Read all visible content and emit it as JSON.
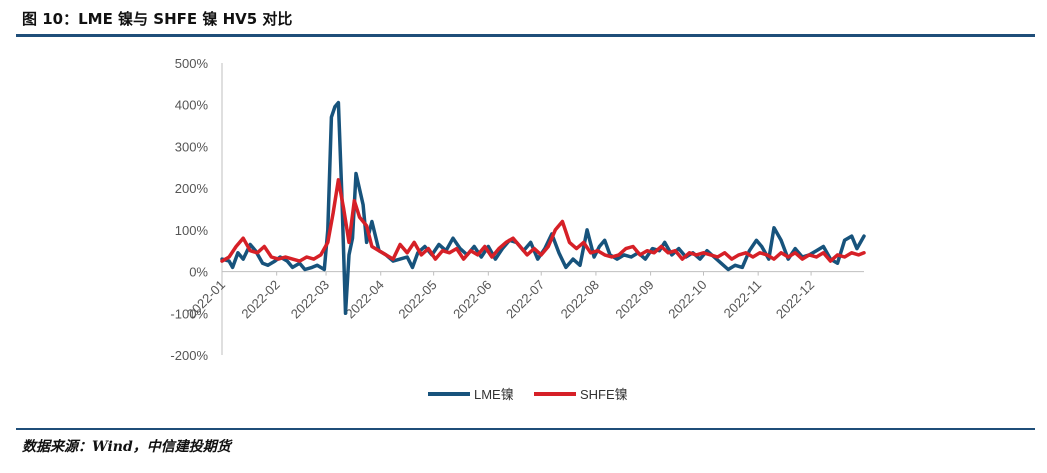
{
  "figure": {
    "title": "图 10：LME 镍与 SHFE 镍 HV5 对比",
    "source": "数据来源：Wind，中信建投期货"
  },
  "colors": {
    "lme": "#17537c",
    "shfe": "#d62027",
    "rule": "#1f4e79"
  },
  "chart_data": {
    "type": "line",
    "title": "",
    "xlabel": "",
    "ylabel": "",
    "ylim": [
      -200,
      500
    ],
    "yticks": [
      500,
      400,
      300,
      200,
      100,
      0,
      -100,
      -200
    ],
    "ytick_labels": [
      "500%",
      "400%",
      "300%",
      "200%",
      "100%",
      "0%",
      "-100%",
      "-200%"
    ],
    "xticks": [
      "2022-01",
      "2022-02",
      "2022-03",
      "2022-04",
      "2022-05",
      "2022-06",
      "2022-07",
      "2022-08",
      "2022-09",
      "2022-10",
      "2022-11",
      "2022-12"
    ],
    "grid": false,
    "legend_position": "bottom-center",
    "series": [
      {
        "name": "LME镍",
        "points": [
          [
            "2022-01-01",
            30
          ],
          [
            "2022-01-05",
            25
          ],
          [
            "2022-01-07",
            10
          ],
          [
            "2022-01-10",
            45
          ],
          [
            "2022-01-13",
            30
          ],
          [
            "2022-01-17",
            65
          ],
          [
            "2022-01-20",
            50
          ],
          [
            "2022-01-24",
            20
          ],
          [
            "2022-01-27",
            15
          ],
          [
            "2022-01-31",
            25
          ],
          [
            "2022-02-03",
            35
          ],
          [
            "2022-02-07",
            25
          ],
          [
            "2022-02-10",
            10
          ],
          [
            "2022-02-14",
            20
          ],
          [
            "2022-02-17",
            5
          ],
          [
            "2022-02-21",
            10
          ],
          [
            "2022-02-24",
            15
          ],
          [
            "2022-02-28",
            5
          ],
          [
            "2022-03-02",
            100
          ],
          [
            "2022-03-04",
            370
          ],
          [
            "2022-03-06",
            395
          ],
          [
            "2022-03-08",
            405
          ],
          [
            "2022-03-10",
            180
          ],
          [
            "2022-03-12",
            -100
          ],
          [
            "2022-03-14",
            40
          ],
          [
            "2022-03-16",
            80
          ],
          [
            "2022-03-18",
            235
          ],
          [
            "2022-03-22",
            160
          ],
          [
            "2022-03-24",
            70
          ],
          [
            "2022-03-27",
            120
          ],
          [
            "2022-03-31",
            50
          ],
          [
            "2022-04-04",
            40
          ],
          [
            "2022-04-08",
            25
          ],
          [
            "2022-04-12",
            30
          ],
          [
            "2022-04-16",
            35
          ],
          [
            "2022-04-19",
            10
          ],
          [
            "2022-04-22",
            45
          ],
          [
            "2022-04-26",
            60
          ],
          [
            "2022-04-30",
            40
          ],
          [
            "2022-05-04",
            65
          ],
          [
            "2022-05-08",
            50
          ],
          [
            "2022-05-12",
            80
          ],
          [
            "2022-05-16",
            55
          ],
          [
            "2022-05-20",
            40
          ],
          [
            "2022-05-24",
            60
          ],
          [
            "2022-05-28",
            35
          ],
          [
            "2022-06-01",
            60
          ],
          [
            "2022-06-05",
            30
          ],
          [
            "2022-06-09",
            55
          ],
          [
            "2022-06-13",
            75
          ],
          [
            "2022-06-17",
            70
          ],
          [
            "2022-06-21",
            50
          ],
          [
            "2022-06-25",
            70
          ],
          [
            "2022-06-29",
            30
          ],
          [
            "2022-07-03",
            55
          ],
          [
            "2022-07-07",
            90
          ],
          [
            "2022-07-11",
            45
          ],
          [
            "2022-07-15",
            10
          ],
          [
            "2022-07-19",
            30
          ],
          [
            "2022-07-23",
            15
          ],
          [
            "2022-07-27",
            100
          ],
          [
            "2022-07-31",
            35
          ],
          [
            "2022-08-03",
            60
          ],
          [
            "2022-08-06",
            75
          ],
          [
            "2022-08-09",
            40
          ],
          [
            "2022-08-13",
            30
          ],
          [
            "2022-08-17",
            40
          ],
          [
            "2022-08-21",
            35
          ],
          [
            "2022-08-25",
            45
          ],
          [
            "2022-08-29",
            30
          ],
          [
            "2022-09-02",
            55
          ],
          [
            "2022-09-06",
            50
          ],
          [
            "2022-09-09",
            70
          ],
          [
            "2022-09-13",
            40
          ],
          [
            "2022-09-17",
            55
          ],
          [
            "2022-09-21",
            35
          ],
          [
            "2022-09-25",
            45
          ],
          [
            "2022-09-29",
            30
          ],
          [
            "2022-10-03",
            50
          ],
          [
            "2022-10-07",
            35
          ],
          [
            "2022-10-11",
            20
          ],
          [
            "2022-10-15",
            5
          ],
          [
            "2022-10-19",
            15
          ],
          [
            "2022-10-23",
            10
          ],
          [
            "2022-10-27",
            50
          ],
          [
            "2022-10-31",
            75
          ],
          [
            "2022-11-03",
            60
          ],
          [
            "2022-11-07",
            30
          ],
          [
            "2022-11-10",
            105
          ],
          [
            "2022-11-14",
            75
          ],
          [
            "2022-11-18",
            30
          ],
          [
            "2022-11-22",
            55
          ],
          [
            "2022-11-26",
            35
          ],
          [
            "2022-11-30",
            40
          ],
          [
            "2022-12-04",
            50
          ],
          [
            "2022-12-08",
            60
          ],
          [
            "2022-12-12",
            30
          ],
          [
            "2022-12-16",
            20
          ],
          [
            "2022-12-20",
            75
          ],
          [
            "2022-12-24",
            85
          ],
          [
            "2022-12-27",
            55
          ],
          [
            "2022-12-31",
            85
          ]
        ]
      },
      {
        "name": "SHFE镍",
        "points": [
          [
            "2022-01-01",
            25
          ],
          [
            "2022-01-05",
            35
          ],
          [
            "2022-01-09",
            60
          ],
          [
            "2022-01-13",
            80
          ],
          [
            "2022-01-17",
            50
          ],
          [
            "2022-01-21",
            45
          ],
          [
            "2022-01-25",
            60
          ],
          [
            "2022-01-29",
            35
          ],
          [
            "2022-02-02",
            30
          ],
          [
            "2022-02-06",
            35
          ],
          [
            "2022-02-10",
            30
          ],
          [
            "2022-02-14",
            25
          ],
          [
            "2022-02-18",
            35
          ],
          [
            "2022-02-22",
            30
          ],
          [
            "2022-02-26",
            40
          ],
          [
            "2022-03-02",
            70
          ],
          [
            "2022-03-05",
            140
          ],
          [
            "2022-03-08",
            220
          ],
          [
            "2022-03-11",
            150
          ],
          [
            "2022-03-14",
            70
          ],
          [
            "2022-03-17",
            170
          ],
          [
            "2022-03-20",
            130
          ],
          [
            "2022-03-24",
            110
          ],
          [
            "2022-03-27",
            60
          ],
          [
            "2022-03-31",
            50
          ],
          [
            "2022-04-04",
            40
          ],
          [
            "2022-04-08",
            30
          ],
          [
            "2022-04-12",
            65
          ],
          [
            "2022-04-16",
            45
          ],
          [
            "2022-04-20",
            70
          ],
          [
            "2022-04-24",
            40
          ],
          [
            "2022-04-28",
            55
          ],
          [
            "2022-05-02",
            30
          ],
          [
            "2022-05-06",
            50
          ],
          [
            "2022-05-10",
            45
          ],
          [
            "2022-05-14",
            55
          ],
          [
            "2022-05-18",
            30
          ],
          [
            "2022-05-22",
            50
          ],
          [
            "2022-05-26",
            40
          ],
          [
            "2022-05-30",
            60
          ],
          [
            "2022-06-03",
            35
          ],
          [
            "2022-06-07",
            55
          ],
          [
            "2022-06-11",
            70
          ],
          [
            "2022-06-15",
            80
          ],
          [
            "2022-06-19",
            60
          ],
          [
            "2022-06-23",
            40
          ],
          [
            "2022-06-27",
            55
          ],
          [
            "2022-07-01",
            40
          ],
          [
            "2022-07-05",
            60
          ],
          [
            "2022-07-09",
            100
          ],
          [
            "2022-07-13",
            120
          ],
          [
            "2022-07-17",
            70
          ],
          [
            "2022-07-21",
            55
          ],
          [
            "2022-07-25",
            70
          ],
          [
            "2022-07-29",
            45
          ],
          [
            "2022-08-02",
            50
          ],
          [
            "2022-08-06",
            40
          ],
          [
            "2022-08-10",
            35
          ],
          [
            "2022-08-14",
            40
          ],
          [
            "2022-08-18",
            55
          ],
          [
            "2022-08-22",
            60
          ],
          [
            "2022-08-26",
            40
          ],
          [
            "2022-08-30",
            50
          ],
          [
            "2022-09-03",
            45
          ],
          [
            "2022-09-07",
            60
          ],
          [
            "2022-09-11",
            45
          ],
          [
            "2022-09-15",
            50
          ],
          [
            "2022-09-19",
            30
          ],
          [
            "2022-09-23",
            45
          ],
          [
            "2022-09-27",
            40
          ],
          [
            "2022-10-01",
            45
          ],
          [
            "2022-10-05",
            40
          ],
          [
            "2022-10-09",
            35
          ],
          [
            "2022-10-13",
            45
          ],
          [
            "2022-10-17",
            30
          ],
          [
            "2022-10-21",
            40
          ],
          [
            "2022-10-25",
            45
          ],
          [
            "2022-10-29",
            35
          ],
          [
            "2022-11-02",
            45
          ],
          [
            "2022-11-06",
            40
          ],
          [
            "2022-11-10",
            30
          ],
          [
            "2022-11-14",
            45
          ],
          [
            "2022-11-18",
            35
          ],
          [
            "2022-11-22",
            45
          ],
          [
            "2022-11-26",
            30
          ],
          [
            "2022-11-30",
            40
          ],
          [
            "2022-12-04",
            35
          ],
          [
            "2022-12-08",
            45
          ],
          [
            "2022-12-12",
            25
          ],
          [
            "2022-12-16",
            40
          ],
          [
            "2022-12-20",
            35
          ],
          [
            "2022-12-24",
            45
          ],
          [
            "2022-12-28",
            40
          ],
          [
            "2022-12-31",
            45
          ]
        ]
      }
    ]
  }
}
